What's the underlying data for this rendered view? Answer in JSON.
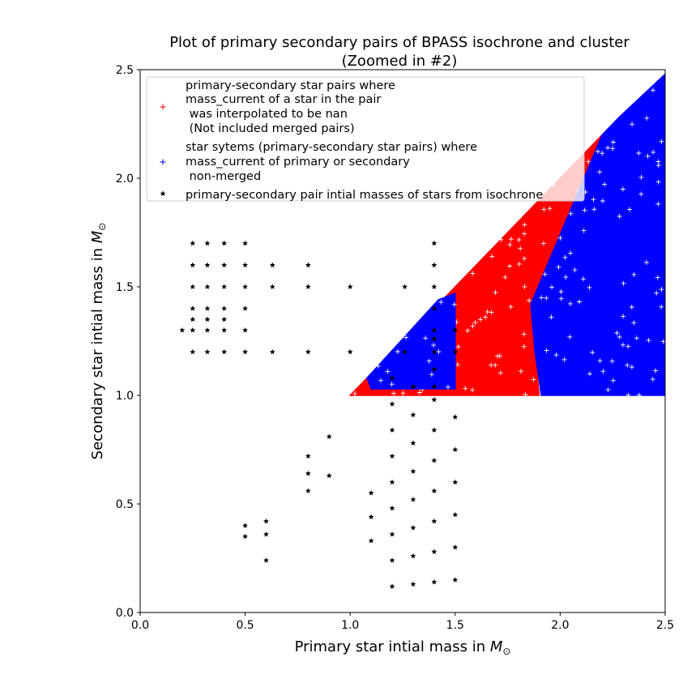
{
  "chart_data": {
    "type": "scatter",
    "title_line1": "Plot of primary secondary pairs of BPASS isochrone and cluster",
    "title_line2": "(Zoomed in #2)",
    "xlabel": "Primary star intial mass in",
    "ylabel": "Secondary star intial mass in",
    "unit_symbol": "M",
    "unit_subscript": "⊙",
    "xlim": [
      0.0,
      2.5
    ],
    "ylim": [
      0.0,
      2.5
    ],
    "xticks": [
      "0.0",
      "0.5",
      "1.0",
      "1.5",
      "2.0",
      "2.5"
    ],
    "yticks": [
      "0.0",
      "0.5",
      "1.0",
      "1.5",
      "2.0",
      "2.5"
    ],
    "legend_position": "upper-left",
    "colors": {
      "nan": "#ff0000",
      "nonmerged": "#0000ff",
      "isochrone": "#000000"
    },
    "series": [
      {
        "marker": "plus",
        "color": "#ff0000",
        "legend_lines": [
          "primary-secondary star pairs where",
          "mass_current of a star in the pair",
          " was interpolated to be nan",
          " (Not included merged pairs)"
        ],
        "regions": [
          {
            "polygon": [
              [
                1.0,
                1.0
              ],
              [
                1.9,
                1.0
              ],
              [
                1.88,
                1.2
              ],
              [
                1.86,
                1.42
              ],
              [
                2.2,
                2.2
              ],
              [
                2.26,
                2.2
              ],
              [
                2.26,
                2.26
              ],
              [
                1.5,
                1.5
              ],
              [
                1.0,
                1.0
              ]
            ]
          }
        ]
      },
      {
        "marker": "plus",
        "color": "#0000ff",
        "legend_lines": [
          "star sytems (primary-secondary star pairs) where",
          "mass_current of primary or secondary",
          " non-merged"
        ],
        "regions": [
          {
            "polygon": [
              [
                1.1,
                1.03
              ],
              [
                1.5,
                1.03
              ],
              [
                1.5,
                1.47
              ],
              [
                1.42,
                1.44
              ],
              [
                1.08,
                1.08
              ]
            ]
          },
          {
            "polygon": [
              [
                1.91,
                1.0
              ],
              [
                2.5,
                1.0
              ],
              [
                2.5,
                2.48
              ],
              [
                2.28,
                2.28
              ],
              [
                2.2,
                2.2
              ],
              [
                1.86,
                1.42
              ],
              [
                1.88,
                1.2
              ]
            ]
          }
        ]
      },
      {
        "marker": "star",
        "color": "#000000",
        "legend_lines": [
          "primary-secondary pair intial masses of stars from isochrone"
        ],
        "points": [
          [
            0.25,
            1.7
          ],
          [
            0.32,
            1.7
          ],
          [
            0.4,
            1.7
          ],
          [
            0.5,
            1.7
          ],
          [
            0.25,
            1.6
          ],
          [
            0.32,
            1.6
          ],
          [
            0.4,
            1.6
          ],
          [
            0.5,
            1.6
          ],
          [
            0.63,
            1.6
          ],
          [
            0.8,
            1.6
          ],
          [
            0.25,
            1.5
          ],
          [
            0.32,
            1.5
          ],
          [
            0.4,
            1.5
          ],
          [
            0.5,
            1.5
          ],
          [
            0.63,
            1.5
          ],
          [
            0.8,
            1.5
          ],
          [
            1.0,
            1.5
          ],
          [
            1.26,
            1.5
          ],
          [
            0.25,
            1.4
          ],
          [
            0.32,
            1.4
          ],
          [
            0.4,
            1.4
          ],
          [
            0.5,
            1.4
          ],
          [
            0.25,
            1.35
          ],
          [
            0.32,
            1.35
          ],
          [
            0.4,
            1.35
          ],
          [
            0.2,
            1.3
          ],
          [
            0.25,
            1.3
          ],
          [
            0.32,
            1.3
          ],
          [
            0.4,
            1.3
          ],
          [
            0.5,
            1.3
          ],
          [
            0.25,
            1.2
          ],
          [
            0.32,
            1.2
          ],
          [
            0.4,
            1.2
          ],
          [
            0.5,
            1.2
          ],
          [
            0.63,
            1.2
          ],
          [
            0.8,
            1.2
          ],
          [
            1.0,
            1.2
          ],
          [
            1.26,
            1.2
          ],
          [
            1.4,
            1.7
          ],
          [
            1.4,
            1.6
          ],
          [
            1.4,
            1.5
          ],
          [
            1.4,
            1.4
          ],
          [
            1.4,
            1.3
          ],
          [
            1.4,
            1.26
          ],
          [
            1.4,
            1.2
          ],
          [
            1.4,
            1.12
          ],
          [
            1.5,
            1.3
          ],
          [
            1.5,
            1.2
          ],
          [
            1.2,
            1.08
          ],
          [
            1.3,
            1.04
          ],
          [
            1.4,
            1.04
          ],
          [
            1.2,
            0.96
          ],
          [
            1.4,
            0.98
          ],
          [
            1.3,
            0.91
          ],
          [
            1.5,
            0.9
          ],
          [
            1.2,
            0.84
          ],
          [
            1.4,
            0.84
          ],
          [
            1.3,
            0.78
          ],
          [
            1.5,
            0.75
          ],
          [
            1.2,
            0.72
          ],
          [
            1.4,
            0.7
          ],
          [
            1.3,
            0.65
          ],
          [
            1.2,
            0.6
          ],
          [
            1.4,
            0.56
          ],
          [
            1.5,
            0.6
          ],
          [
            1.3,
            0.52
          ],
          [
            1.2,
            0.48
          ],
          [
            1.4,
            0.42
          ],
          [
            1.5,
            0.45
          ],
          [
            1.3,
            0.39
          ],
          [
            1.2,
            0.36
          ],
          [
            1.4,
            0.28
          ],
          [
            1.5,
            0.3
          ],
          [
            1.3,
            0.26
          ],
          [
            1.2,
            0.24
          ],
          [
            1.4,
            0.14
          ],
          [
            1.5,
            0.15
          ],
          [
            1.3,
            0.13
          ],
          [
            1.2,
            0.12
          ],
          [
            1.1,
            0.55
          ],
          [
            1.1,
            0.44
          ],
          [
            1.1,
            0.33
          ],
          [
            0.9,
            0.81
          ],
          [
            0.9,
            0.63
          ],
          [
            0.8,
            0.72
          ],
          [
            0.8,
            0.64
          ],
          [
            0.8,
            0.56
          ],
          [
            0.6,
            0.42
          ],
          [
            0.6,
            0.36
          ],
          [
            0.6,
            0.24
          ],
          [
            0.5,
            0.4
          ],
          [
            0.5,
            0.35
          ]
        ]
      }
    ]
  }
}
